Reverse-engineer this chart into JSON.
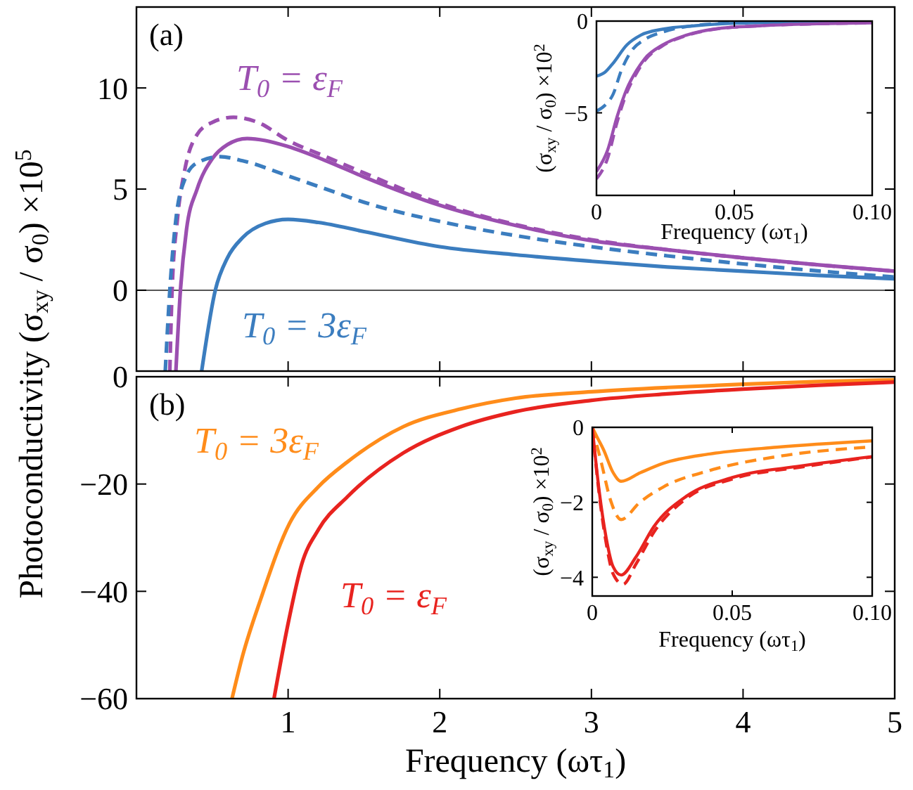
{
  "chart_data": [
    {
      "type": "line",
      "ylabel": "Photoconductivity (σ$_{xy}$ / σ$_{0}$) ×10$^{5}$",
      "annotations": [
        "(a)"
      ],
      "xlim": [
        0,
        5
      ],
      "xticks": [
        {
          "value": 1,
          "label": null
        },
        {
          "value": 2,
          "label": null
        },
        {
          "value": 3,
          "label": null
        },
        {
          "value": 4,
          "label": null
        },
        {
          "value": 5,
          "label": null
        }
      ],
      "ylim": [
        -4,
        14
      ],
      "yticks": [
        0,
        5,
        10
      ],
      "tick_labels": "y",
      "ref_lines": [
        {
          "axis": "y",
          "value": 0,
          "color": "#555555"
        }
      ],
      "series": [
        {
          "name": "T$_{0}$ = ε$_{F}$",
          "color": "#9b4fb0",
          "line_style": "solid",
          "x": [
            0.26,
            0.29,
            0.33,
            0.4,
            0.5,
            0.6,
            0.73,
            0.85,
            1,
            1.25,
            1.5,
            2,
            2.5,
            3,
            3.5,
            4,
            4.5,
            5
          ],
          "values": [
            -4,
            0,
            3,
            5,
            6.5,
            7.2,
            7.5,
            7.4,
            7.1,
            6.4,
            5.6,
            4.2,
            3.2,
            2.45,
            2,
            1.6,
            1.25,
            0.94
          ]
        },
        {
          "color": "#9b4fb0",
          "line_style": "dashed",
          "x": [
            0.22,
            0.235,
            0.27,
            0.32,
            0.4,
            0.5,
            0.64,
            0.8,
            1,
            1.25,
            1.5,
            2,
            2.5,
            3,
            3.5,
            4,
            4.5,
            5
          ],
          "values": [
            -4,
            0,
            3.5,
            6,
            7.7,
            8.3,
            8.55,
            8.3,
            7.4,
            6.6,
            5.8,
            4.3,
            3.25,
            2.5,
            2,
            1.6,
            1.25,
            0.94
          ]
        },
        {
          "name": "T$_{0}$ = 3ε$_{F}$",
          "color": "#3b7dbf",
          "line_style": "solid",
          "x": [
            0.43,
            0.52,
            0.6,
            0.7,
            0.85,
            1,
            1.2,
            1.5,
            2,
            2.5,
            3,
            3.5,
            4,
            4.5,
            5
          ],
          "values": [
            -4,
            0,
            1.6,
            2.6,
            3.3,
            3.5,
            3.35,
            2.9,
            2.15,
            1.75,
            1.43,
            1.15,
            0.94,
            0.73,
            0.56
          ]
        },
        {
          "color": "#3b7dbf",
          "line_style": "dashed",
          "x": [
            0.19,
            0.22,
            0.26,
            0.32,
            0.4,
            0.55,
            0.7,
            1,
            1.25,
            1.5,
            2,
            2.5,
            3,
            3.5,
            4,
            4.5,
            5
          ],
          "values": [
            -4,
            0,
            3.5,
            5.5,
            6.3,
            6.6,
            6.4,
            5.65,
            5,
            4.35,
            3.4,
            2.7,
            2.15,
            1.7,
            1.3,
            0.95,
            0.65
          ]
        }
      ]
    },
    {
      "type": "line",
      "xlabel": "Frequency (ωτ$_{1}$)",
      "ylabel": "(σ$_{xy}$ / σ$_{0}$) ×10$^{2}$",
      "xlim": [
        0,
        0.1
      ],
      "xticks": [
        0,
        0.05,
        {
          "value": 0.1,
          "label": "0.10"
        }
      ],
      "ylim": [
        -9.5,
        0
      ],
      "yticks": [
        -5,
        0
      ],
      "series": [
        {
          "color": "#3b7dbf",
          "line_style": "solid",
          "x": [
            0,
            0.003,
            0.006,
            0.011,
            0.016,
            0.024,
            0.036,
            0.05,
            0.07,
            0.1
          ],
          "values": [
            -3,
            -2.8,
            -2.3,
            -1.3,
            -0.77,
            -0.44,
            -0.25,
            -0.12,
            -0.07,
            -0.05
          ]
        },
        {
          "color": "#3b7dbf",
          "line_style": "dashed",
          "x": [
            0,
            0.003,
            0.006,
            0.009,
            0.0125,
            0.0175,
            0.024,
            0.035,
            0.05,
            0.07,
            0.1
          ],
          "values": [
            -4.9,
            -4.6,
            -4,
            -2.7,
            -1.67,
            -1,
            -0.6,
            -0.25,
            -0.1,
            -0.05,
            0
          ]
        },
        {
          "color": "#9b4fb0",
          "line_style": "solid",
          "x": [
            0,
            0.004,
            0.0075,
            0.011,
            0.0145,
            0.0175,
            0.024,
            0.0325,
            0.0425,
            0.06,
            0.08,
            0.1
          ],
          "values": [
            -8.2,
            -7.05,
            -5.2,
            -3.7,
            -2.7,
            -2.05,
            -1.3,
            -0.77,
            -0.44,
            -0.25,
            -0.15,
            -0.1
          ]
        },
        {
          "color": "#9b4fb0",
          "line_style": "dashed",
          "x": [
            0,
            0.004,
            0.0075,
            0.011,
            0.0145,
            0.0175,
            0.024,
            0.0325,
            0.0425,
            0.06,
            0.08,
            0.1
          ],
          "values": [
            -8.6,
            -7.5,
            -5.5,
            -3.9,
            -2.85,
            -2.15,
            -1.35,
            -0.8,
            -0.45,
            -0.25,
            -0.15,
            -0.1
          ]
        }
      ]
    },
    {
      "type": "line",
      "xlabel": "Frequency (ωτ$_{1}$)",
      "annotations": [
        "(b)"
      ],
      "xlim": [
        0,
        5
      ],
      "xticks": [
        1,
        2,
        3,
        4,
        5
      ],
      "ylim": [
        -60,
        0
      ],
      "yticks": [
        -60,
        -40,
        -20,
        0
      ],
      "series": [
        {
          "name": "T$_{0}$ = 3ε$_{F}$",
          "color": "#ff8c1a",
          "line_style": "solid",
          "x": [
            0.63,
            0.7,
            0.82,
            1.01,
            1.2,
            1.39,
            1.76,
            2.14,
            2.5,
            3,
            3.5,
            4,
            4.5,
            5
          ],
          "values": [
            -60,
            -52,
            -41.4,
            -27.3,
            -20.5,
            -15.9,
            -9.3,
            -6,
            -4,
            -2.8,
            -2,
            -1.4,
            -0.9,
            -0.6
          ]
        },
        {
          "name": "T$_{0}$ = ε$_{F}$",
          "color": "#e8231f",
          "line_style": "solid",
          "x": [
            0.907,
            1,
            1.09,
            1.2,
            1.39,
            1.76,
            2.14,
            2.5,
            3,
            3.5,
            4,
            4.5,
            5
          ],
          "values": [
            -60,
            -46,
            -34.9,
            -28.5,
            -22.4,
            -14.2,
            -9.3,
            -6.5,
            -4.4,
            -3.2,
            -2.3,
            -1.6,
            -1
          ]
        }
      ]
    },
    {
      "type": "line",
      "xlabel": "Frequency (ωτ$_{1}$)",
      "ylabel": "(σ$_{xy}$ / σ$_{0}$) ×10$^{2}$",
      "xlim": [
        0,
        0.1
      ],
      "xticks": [
        0,
        0.05,
        {
          "value": 0.1,
          "label": "0.10"
        }
      ],
      "ylim": [
        -4.5,
        0
      ],
      "yticks": [
        -4,
        -2,
        0
      ],
      "series": [
        {
          "color": "#ff8c1a",
          "line_style": "solid",
          "x": [
            0,
            0.002,
            0.004,
            0.0074,
            0.0103,
            0.0172,
            0.0254,
            0.042,
            0.066,
            0.1
          ],
          "values": [
            0,
            -0.3,
            -0.59,
            -1.2,
            -1.44,
            -1.21,
            -0.96,
            -0.71,
            -0.53,
            -0.36
          ]
        },
        {
          "color": "#ff8c1a",
          "line_style": "dashed",
          "x": [
            0,
            0.0033,
            0.0066,
            0.0103,
            0.017,
            0.0254,
            0.042,
            0.066,
            0.1
          ],
          "values": [
            0,
            -0.96,
            -1.96,
            -2.46,
            -2,
            -1.59,
            -1.15,
            -0.78,
            -0.52
          ]
        },
        {
          "color": "#e8231f",
          "line_style": "solid",
          "x": [
            0,
            0.0025,
            0.005,
            0.0074,
            0.0103,
            0.0156,
            0.022,
            0.0336,
            0.05,
            0.0746,
            0.1
          ],
          "values": [
            0,
            -1.71,
            -2.96,
            -3.71,
            -3.94,
            -3.46,
            -2.65,
            -1.84,
            -1.34,
            -1.03,
            -0.78
          ]
        },
        {
          "color": "#e8231f",
          "line_style": "dashed",
          "x": [
            0,
            0.0025,
            0.005,
            0.0074,
            0.011,
            0.0156,
            0.022,
            0.0336,
            0.05,
            0.0746,
            0.1
          ],
          "values": [
            0,
            -1.8,
            -3.1,
            -3.9,
            -4.19,
            -3.65,
            -2.8,
            -1.9,
            -1.38,
            -1.06,
            -0.79
          ]
        }
      ]
    }
  ]
}
